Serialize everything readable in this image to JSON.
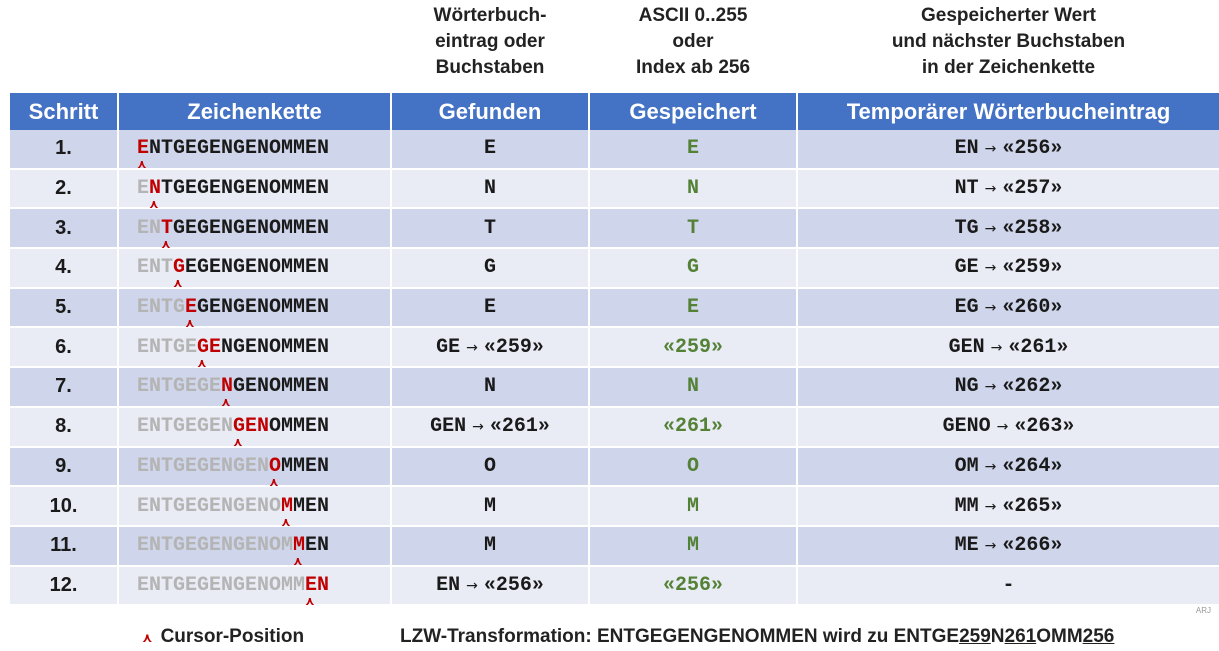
{
  "subheadings": {
    "found": [
      "Wörterbuch-",
      "eintrag oder",
      "Buchstaben"
    ],
    "stored": [
      "ASCII 0..255",
      "oder",
      "Index ab 256"
    ],
    "temp": [
      "Gespeicherter Wert",
      "und nächster Buchstaben",
      "in der Zeichenkette"
    ]
  },
  "columns": [
    "Schritt",
    "Zeichenkette",
    "Gefunden",
    "Gespeichert",
    "Temporärer Wörterbucheintrag"
  ],
  "arrow_symbol": "→",
  "caret_symbol": "⋏",
  "rows": [
    {
      "step": "1.",
      "done": "",
      "cur": "E",
      "rest": "NTGEGENGENOMMEN",
      "found": "E",
      "found_ref": "",
      "stored": "E",
      "temp_key": "EN",
      "temp_val": "«256»"
    },
    {
      "step": "2.",
      "done": "E",
      "cur": "N",
      "rest": "TGEGENGENOMMEN",
      "found": "N",
      "found_ref": "",
      "stored": "N",
      "temp_key": "NT",
      "temp_val": "«257»"
    },
    {
      "step": "3.",
      "done": "EN",
      "cur": "T",
      "rest": "GEGENGENOMMEN",
      "found": "T",
      "found_ref": "",
      "stored": "T",
      "temp_key": "TG",
      "temp_val": "«258»"
    },
    {
      "step": "4.",
      "done": "ENT",
      "cur": "G",
      "rest": "EGENGENOMMEN",
      "found": "G",
      "found_ref": "",
      "stored": "G",
      "temp_key": "GE",
      "temp_val": "«259»"
    },
    {
      "step": "5.",
      "done": "ENTG",
      "cur": "E",
      "rest": "GENGENOMMEN",
      "found": "E",
      "found_ref": "",
      "stored": "E",
      "temp_key": "EG",
      "temp_val": "«260»"
    },
    {
      "step": "6.",
      "done": "ENTGE",
      "cur": "GE",
      "rest": "NGENOMMEN",
      "found": "GE",
      "found_ref": "«259»",
      "stored": "«259»",
      "temp_key": "GEN",
      "temp_val": "«261»"
    },
    {
      "step": "7.",
      "done": "ENTGEGE",
      "cur": "N",
      "rest": "GENOMMEN",
      "found": "N",
      "found_ref": "",
      "stored": "N",
      "temp_key": "NG",
      "temp_val": "«262»"
    },
    {
      "step": "8.",
      "done": "ENTGEGEN",
      "cur": "GEN",
      "rest": "OMMEN",
      "found": "GEN",
      "found_ref": "«261»",
      "stored": "«261»",
      "temp_key": "GENO",
      "temp_val": "«263»"
    },
    {
      "step": "9.",
      "done": "ENTGEGENGEN",
      "cur": "O",
      "rest": "MMEN",
      "found": "O",
      "found_ref": "",
      "stored": "O",
      "temp_key": "OM",
      "temp_val": "«264»"
    },
    {
      "step": "10.",
      "done": "ENTGEGENGENO",
      "cur": "M",
      "rest": "MEN",
      "found": "M",
      "found_ref": "",
      "stored": "M",
      "temp_key": "MM",
      "temp_val": "«265»"
    },
    {
      "step": "11.",
      "done": "ENTGEGENGENOM",
      "cur": "M",
      "rest": "EN",
      "found": "M",
      "found_ref": "",
      "stored": "M",
      "temp_key": "ME",
      "temp_val": "«266»"
    },
    {
      "step": "12.",
      "done": "ENTGEGENGENOMM",
      "cur": "EN",
      "rest": "",
      "found": "EN",
      "found_ref": "«256»",
      "stored": "«256»",
      "temp_key": "-",
      "temp_val": ""
    }
  ],
  "watermark": "ARJ",
  "legend": {
    "symbol": "⋏",
    "label": "Cursor-Position"
  },
  "summary": {
    "prefix": "LZW-Transformation: ENTGEGENGENOMMEN wird zu ENTGE",
    "ref1": "259",
    "mid1": "N",
    "ref2": "261",
    "mid2": "OMM",
    "ref3": "256"
  },
  "colors": {
    "header_bg": "#4472c4",
    "row_odd": "#cfd5ea",
    "row_even": "#e9ebf5",
    "cursor_red": "#c00000",
    "stored_green": "#538135",
    "consumed_gray": "#b4b4b4"
  }
}
